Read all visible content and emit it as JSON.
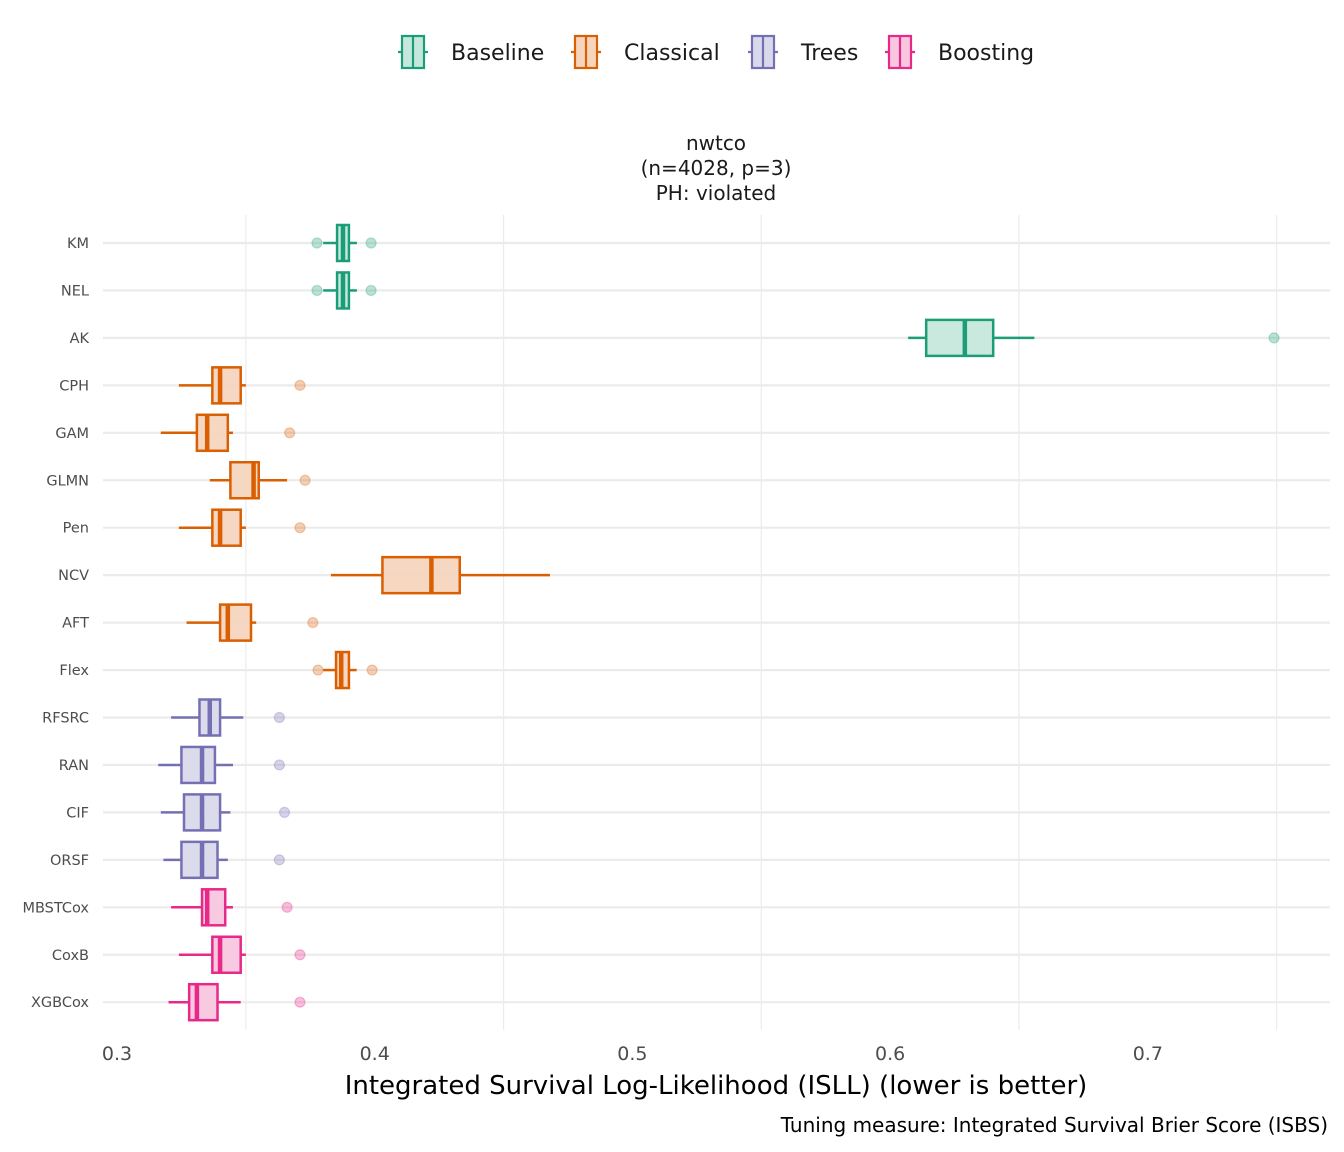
{
  "chart_data": {
    "type": "boxplot",
    "facet_title": [
      "nwtco",
      "(n=4028, p=3)",
      "PH: violated"
    ],
    "xlabel": "Integrated Survival Log-Likelihood (ISLL) (lower is better)",
    "ylabel": "",
    "caption": "Tuning measure: Integrated Survival Brier Score (ISBS)",
    "xlim": [
      0.295,
      0.77
    ],
    "xticks": [
      0.3,
      0.4,
      0.5,
      0.6,
      0.7
    ],
    "xtick_labels": [
      "0.3",
      "0.4",
      "0.5",
      "0.6",
      "0.7"
    ],
    "x_minor_grid": [
      0.35,
      0.45,
      0.55,
      0.65,
      0.75
    ],
    "grid": true,
    "legend_position": "top",
    "legend": [
      {
        "name": "Baseline",
        "color": "#1B9E77",
        "fill": "#C6E7DC"
      },
      {
        "name": "Classical",
        "color": "#D95F02",
        "fill": "#F5D5BE"
      },
      {
        "name": "Trees",
        "color": "#7570B3",
        "fill": "#DAD9EB"
      },
      {
        "name": "Boosting",
        "color": "#E7298A",
        "fill": "#F8C7DF"
      }
    ],
    "categories": [
      "KM",
      "NEL",
      "AK",
      "CPH",
      "GAM",
      "GLMN",
      "Pen",
      "NCV",
      "AFT",
      "Flex",
      "RFSRC",
      "RAN",
      "CIF",
      "ORSF",
      "MBSTCox",
      "CoxB",
      "XGBCox"
    ],
    "boxes": [
      {
        "label": "KM",
        "group": "Baseline",
        "whisker_low": 0.38,
        "q1": 0.3854,
        "median": 0.3877,
        "q3": 0.39,
        "whisker_high": 0.3931,
        "outliers": [
          0.3776,
          0.3986
        ]
      },
      {
        "label": "NEL",
        "group": "Baseline",
        "whisker_low": 0.38,
        "q1": 0.3854,
        "median": 0.3877,
        "q3": 0.39,
        "whisker_high": 0.3931,
        "outliers": [
          0.3776,
          0.3986
        ]
      },
      {
        "label": "AK",
        "group": "Baseline",
        "whisker_low": 0.607,
        "q1": 0.614,
        "median": 0.629,
        "q3": 0.64,
        "whisker_high": 0.656,
        "outliers": [
          0.749
        ]
      },
      {
        "label": "CPH",
        "group": "Classical",
        "whisker_low": 0.324,
        "q1": 0.337,
        "median": 0.34,
        "q3": 0.348,
        "whisker_high": 0.35,
        "outliers": [
          0.371
        ]
      },
      {
        "label": "GAM",
        "group": "Classical",
        "whisker_low": 0.317,
        "q1": 0.331,
        "median": 0.335,
        "q3": 0.343,
        "whisker_high": 0.345,
        "outliers": [
          0.367
        ]
      },
      {
        "label": "GLMN",
        "group": "Classical",
        "whisker_low": 0.336,
        "q1": 0.344,
        "median": 0.353,
        "q3": 0.355,
        "whisker_high": 0.366,
        "outliers": [
          0.373
        ]
      },
      {
        "label": "Pen",
        "group": "Classical",
        "whisker_low": 0.324,
        "q1": 0.337,
        "median": 0.34,
        "q3": 0.348,
        "whisker_high": 0.35,
        "outliers": [
          0.371
        ]
      },
      {
        "label": "NCV",
        "group": "Classical",
        "whisker_low": 0.383,
        "q1": 0.403,
        "median": 0.422,
        "q3": 0.433,
        "whisker_high": 0.468,
        "outliers": []
      },
      {
        "label": "AFT",
        "group": "Classical",
        "whisker_low": 0.327,
        "q1": 0.34,
        "median": 0.343,
        "q3": 0.352,
        "whisker_high": 0.354,
        "outliers": [
          0.376
        ]
      },
      {
        "label": "Flex",
        "group": "Classical",
        "whisker_low": 0.38,
        "q1": 0.385,
        "median": 0.387,
        "q3": 0.39,
        "whisker_high": 0.393,
        "outliers": [
          0.378,
          0.399
        ]
      },
      {
        "label": "RFSRC",
        "group": "Trees",
        "whisker_low": 0.321,
        "q1": 0.332,
        "median": 0.336,
        "q3": 0.34,
        "whisker_high": 0.349,
        "outliers": [
          0.363
        ]
      },
      {
        "label": "RAN",
        "group": "Trees",
        "whisker_low": 0.316,
        "q1": 0.325,
        "median": 0.333,
        "q3": 0.338,
        "whisker_high": 0.345,
        "outliers": [
          0.363
        ]
      },
      {
        "label": "CIF",
        "group": "Trees",
        "whisker_low": 0.317,
        "q1": 0.326,
        "median": 0.333,
        "q3": 0.34,
        "whisker_high": 0.344,
        "outliers": [
          0.365
        ]
      },
      {
        "label": "ORSF",
        "group": "Trees",
        "whisker_low": 0.318,
        "q1": 0.325,
        "median": 0.333,
        "q3": 0.339,
        "whisker_high": 0.343,
        "outliers": [
          0.363
        ]
      },
      {
        "label": "MBSTCox",
        "group": "Boosting",
        "whisker_low": 0.321,
        "q1": 0.333,
        "median": 0.335,
        "q3": 0.342,
        "whisker_high": 0.345,
        "outliers": [
          0.366
        ]
      },
      {
        "label": "CoxB",
        "group": "Boosting",
        "whisker_low": 0.324,
        "q1": 0.337,
        "median": 0.34,
        "q3": 0.348,
        "whisker_high": 0.35,
        "outliers": [
          0.371
        ]
      },
      {
        "label": "XGBCox",
        "group": "Boosting",
        "whisker_low": 0.32,
        "q1": 0.328,
        "median": 0.331,
        "q3": 0.339,
        "whisker_high": 0.348,
        "outliers": [
          0.371
        ]
      }
    ]
  }
}
